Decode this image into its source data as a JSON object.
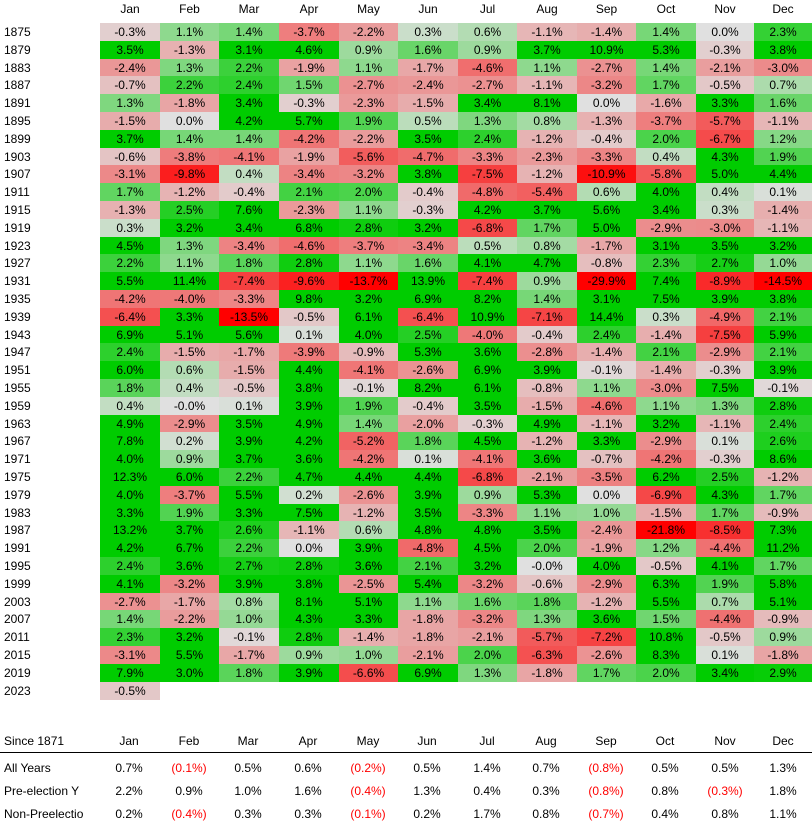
{
  "months": [
    "Jan",
    "Feb",
    "Mar",
    "Apr",
    "May",
    "Jun",
    "Jul",
    "Aug",
    "Sep",
    "Oct",
    "Nov",
    "Dec"
  ],
  "chart_data": {
    "type": "heatmap",
    "value_format": "percent",
    "color_scale": {
      "negative": "#ff0000",
      "neutral": "#e0e0e0",
      "positive": "#00cc00"
    },
    "x": [
      "Jan",
      "Feb",
      "Mar",
      "Apr",
      "May",
      "Jun",
      "Jul",
      "Aug",
      "Sep",
      "Oct",
      "Nov",
      "Dec"
    ],
    "rows": [
      {
        "year": "1875",
        "values": [
          -0.3,
          1.1,
          1.4,
          -3.7,
          -2.2,
          0.3,
          0.6,
          -1.1,
          -1.4,
          1.4,
          0.0,
          2.3
        ]
      },
      {
        "year": "1879",
        "values": [
          3.5,
          -1.3,
          3.1,
          4.6,
          0.9,
          1.6,
          0.9,
          3.7,
          10.9,
          5.3,
          -0.3,
          3.8
        ]
      },
      {
        "year": "1883",
        "values": [
          -2.4,
          1.3,
          2.2,
          -1.9,
          1.1,
          -1.7,
          -4.6,
          1.1,
          -2.7,
          1.4,
          -2.1,
          -3.0
        ]
      },
      {
        "year": "1887",
        "values": [
          -0.7,
          2.2,
          2.4,
          1.5,
          -2.7,
          -2.4,
          -2.7,
          -1.1,
          -3.2,
          1.7,
          -0.5,
          0.7
        ]
      },
      {
        "year": "1891",
        "values": [
          1.3,
          -1.8,
          3.4,
          -0.3,
          -2.3,
          -1.5,
          3.4,
          8.1,
          0.0,
          -1.6,
          3.3,
          1.6
        ]
      },
      {
        "year": "1895",
        "values": [
          -1.5,
          0.0,
          4.2,
          5.7,
          1.9,
          0.5,
          1.3,
          0.8,
          -1.3,
          -3.7,
          -5.7,
          -1.1
        ]
      },
      {
        "year": "1899",
        "values": [
          3.7,
          1.4,
          1.4,
          -4.2,
          -2.2,
          3.5,
          2.4,
          -1.2,
          -0.4,
          2.0,
          -6.7,
          1.2
        ]
      },
      {
        "year": "1903",
        "values": [
          -0.6,
          -3.8,
          -4.1,
          -1.9,
          -5.6,
          -4.7,
          -3.3,
          -2.3,
          -3.3,
          0.4,
          4.3,
          1.9
        ]
      },
      {
        "year": "1907",
        "values": [
          -3.1,
          -9.8,
          0.4,
          -3.4,
          -3.2,
          3.8,
          -7.5,
          -1.2,
          -10.9,
          -5.8,
          5.0,
          4.4
        ]
      },
      {
        "year": "1911",
        "values": [
          1.7,
          -1.2,
          -0.4,
          2.1,
          2.0,
          -0.4,
          -4.8,
          -5.4,
          0.6,
          4.0,
          0.4,
          0.1
        ]
      },
      {
        "year": "1915",
        "values": [
          -1.3,
          2.5,
          7.6,
          -2.3,
          1.1,
          -0.3,
          4.2,
          3.7,
          5.6,
          3.4,
          0.3,
          -1.4
        ]
      },
      {
        "year": "1919",
        "values": [
          0.3,
          3.2,
          3.4,
          6.8,
          2.8,
          3.2,
          -6.8,
          1.7,
          5.0,
          -2.9,
          -3.0,
          -1.1
        ]
      },
      {
        "year": "1923",
        "values": [
          4.5,
          1.3,
          -3.4,
          -4.6,
          -3.7,
          -3.4,
          0.5,
          0.8,
          -1.7,
          3.1,
          3.5,
          3.2
        ]
      },
      {
        "year": "1927",
        "values": [
          2.2,
          1.1,
          1.8,
          2.8,
          1.1,
          1.6,
          4.1,
          4.7,
          -0.8,
          2.3,
          2.7,
          1.0
        ]
      },
      {
        "year": "1931",
        "values": [
          5.5,
          11.4,
          -7.4,
          -9.6,
          -13.7,
          13.9,
          -7.4,
          0.9,
          -29.9,
          7.4,
          -8.9,
          -14.5
        ]
      },
      {
        "year": "1935",
        "values": [
          -4.2,
          -4.0,
          -3.3,
          9.8,
          3.2,
          6.9,
          8.2,
          1.4,
          3.1,
          7.5,
          3.9,
          3.8
        ]
      },
      {
        "year": "1939",
        "values": [
          -6.4,
          3.3,
          -13.5,
          -0.5,
          6.1,
          -6.4,
          10.9,
          -7.1,
          14.4,
          0.3,
          -4.9,
          2.1
        ]
      },
      {
        "year": "1943",
        "values": [
          6.9,
          5.1,
          5.6,
          0.1,
          4.0,
          2.5,
          -4.0,
          -0.4,
          2.4,
          -1.4,
          -7.5,
          5.9
        ]
      },
      {
        "year": "1947",
        "values": [
          2.4,
          -1.5,
          -1.7,
          -3.9,
          -0.9,
          5.3,
          3.6,
          -2.8,
          -1.4,
          2.1,
          -2.9,
          2.1
        ]
      },
      {
        "year": "1951",
        "values": [
          6.0,
          0.6,
          -1.5,
          4.4,
          -4.1,
          -2.6,
          6.9,
          3.9,
          -0.1,
          -1.4,
          -0.3,
          3.9
        ]
      },
      {
        "year": "1955",
        "values": [
          1.8,
          0.4,
          -0.5,
          3.8,
          -0.1,
          8.2,
          6.1,
          -0.8,
          1.1,
          -3.0,
          7.5,
          -0.1
        ]
      },
      {
        "year": "1959",
        "values": [
          0.4,
          -0.0,
          0.1,
          3.9,
          1.9,
          -0.4,
          3.5,
          -1.5,
          -4.6,
          1.1,
          1.3,
          2.8
        ]
      },
      {
        "year": "1963",
        "values": [
          4.9,
          -2.9,
          3.5,
          4.9,
          1.4,
          -2.0,
          -0.3,
          4.9,
          -1.1,
          3.2,
          -1.1,
          2.4
        ]
      },
      {
        "year": "1967",
        "values": [
          7.8,
          0.2,
          3.9,
          4.2,
          -5.2,
          1.8,
          4.5,
          -1.2,
          3.3,
          -2.9,
          0.1,
          2.6
        ]
      },
      {
        "year": "1971",
        "values": [
          4.0,
          0.9,
          3.7,
          3.6,
          -4.2,
          0.1,
          -4.1,
          3.6,
          -0.7,
          -4.2,
          -0.3,
          8.6
        ]
      },
      {
        "year": "1975",
        "values": [
          12.3,
          6.0,
          2.2,
          4.7,
          4.4,
          4.4,
          -6.8,
          -2.1,
          -3.5,
          6.2,
          2.5,
          -1.2
        ]
      },
      {
        "year": "1979",
        "values": [
          4.0,
          -3.7,
          5.5,
          0.2,
          -2.6,
          3.9,
          0.9,
          5.3,
          0.0,
          -6.9,
          4.3,
          1.7
        ]
      },
      {
        "year": "1983",
        "values": [
          3.3,
          1.9,
          3.3,
          7.5,
          -1.2,
          3.5,
          -3.3,
          1.1,
          1.0,
          -1.5,
          1.7,
          -0.9
        ]
      },
      {
        "year": "1987",
        "values": [
          13.2,
          3.7,
          2.6,
          -1.1,
          0.6,
          4.8,
          4.8,
          3.5,
          -2.4,
          -21.8,
          -8.5,
          7.3
        ]
      },
      {
        "year": "1991",
        "values": [
          4.2,
          6.7,
          2.2,
          0.0,
          3.9,
          -4.8,
          4.5,
          2.0,
          -1.9,
          1.2,
          -4.4,
          11.2
        ]
      },
      {
        "year": "1995",
        "values": [
          2.4,
          3.6,
          2.7,
          2.8,
          3.6,
          2.1,
          3.2,
          -0.0,
          4.0,
          -0.5,
          4.1,
          1.7
        ]
      },
      {
        "year": "1999",
        "values": [
          4.1,
          -3.2,
          3.9,
          3.8,
          -2.5,
          5.4,
          -3.2,
          -0.6,
          -2.9,
          6.3,
          1.9,
          5.8
        ]
      },
      {
        "year": "2003",
        "values": [
          -2.7,
          -1.7,
          0.8,
          8.1,
          5.1,
          1.1,
          1.6,
          1.8,
          -1.2,
          5.5,
          0.7,
          5.1
        ]
      },
      {
        "year": "2007",
        "values": [
          1.4,
          -2.2,
          1.0,
          4.3,
          3.3,
          -1.8,
          -3.2,
          1.3,
          3.6,
          1.5,
          -4.4,
          -0.9
        ]
      },
      {
        "year": "2011",
        "values": [
          2.3,
          3.2,
          -0.1,
          2.8,
          -1.4,
          -1.8,
          -2.1,
          -5.7,
          -7.2,
          10.8,
          -0.5,
          0.9
        ]
      },
      {
        "year": "2015",
        "values": [
          -3.1,
          5.5,
          -1.7,
          0.9,
          1.0,
          -2.1,
          2.0,
          -6.3,
          -2.6,
          8.3,
          0.1,
          -1.8
        ]
      },
      {
        "year": "2019",
        "values": [
          7.9,
          3.0,
          1.8,
          3.9,
          -6.6,
          6.9,
          1.3,
          -1.8,
          1.7,
          2.0,
          3.4,
          2.9
        ]
      },
      {
        "year": "2023",
        "values": [
          -0.5,
          null,
          null,
          null,
          null,
          null,
          null,
          null,
          null,
          null,
          null,
          null
        ]
      }
    ]
  },
  "summary": {
    "header_label": "Since 1871",
    "rows": [
      {
        "label": "All Years",
        "values": [
          "0.7%",
          "(0.1%)",
          "0.5%",
          "0.6%",
          "(0.2%)",
          "0.5%",
          "1.4%",
          "0.7%",
          "(0.8%)",
          "0.5%",
          "0.5%",
          "1.3%"
        ]
      },
      {
        "label": "Pre-election Y",
        "values": [
          "2.2%",
          "0.9%",
          "1.0%",
          "1.6%",
          "(0.4%)",
          "1.3%",
          "0.4%",
          "0.3%",
          "(0.8%)",
          "0.8%",
          "(0.3%)",
          "1.8%"
        ]
      },
      {
        "label": "Non-Preelectio",
        "values": [
          "0.2%",
          "(0.4%)",
          "0.3%",
          "0.3%",
          "(0.1%)",
          "0.2%",
          "1.7%",
          "0.8%",
          "(0.7%)",
          "0.4%",
          "0.8%",
          "1.1%"
        ]
      }
    ]
  }
}
